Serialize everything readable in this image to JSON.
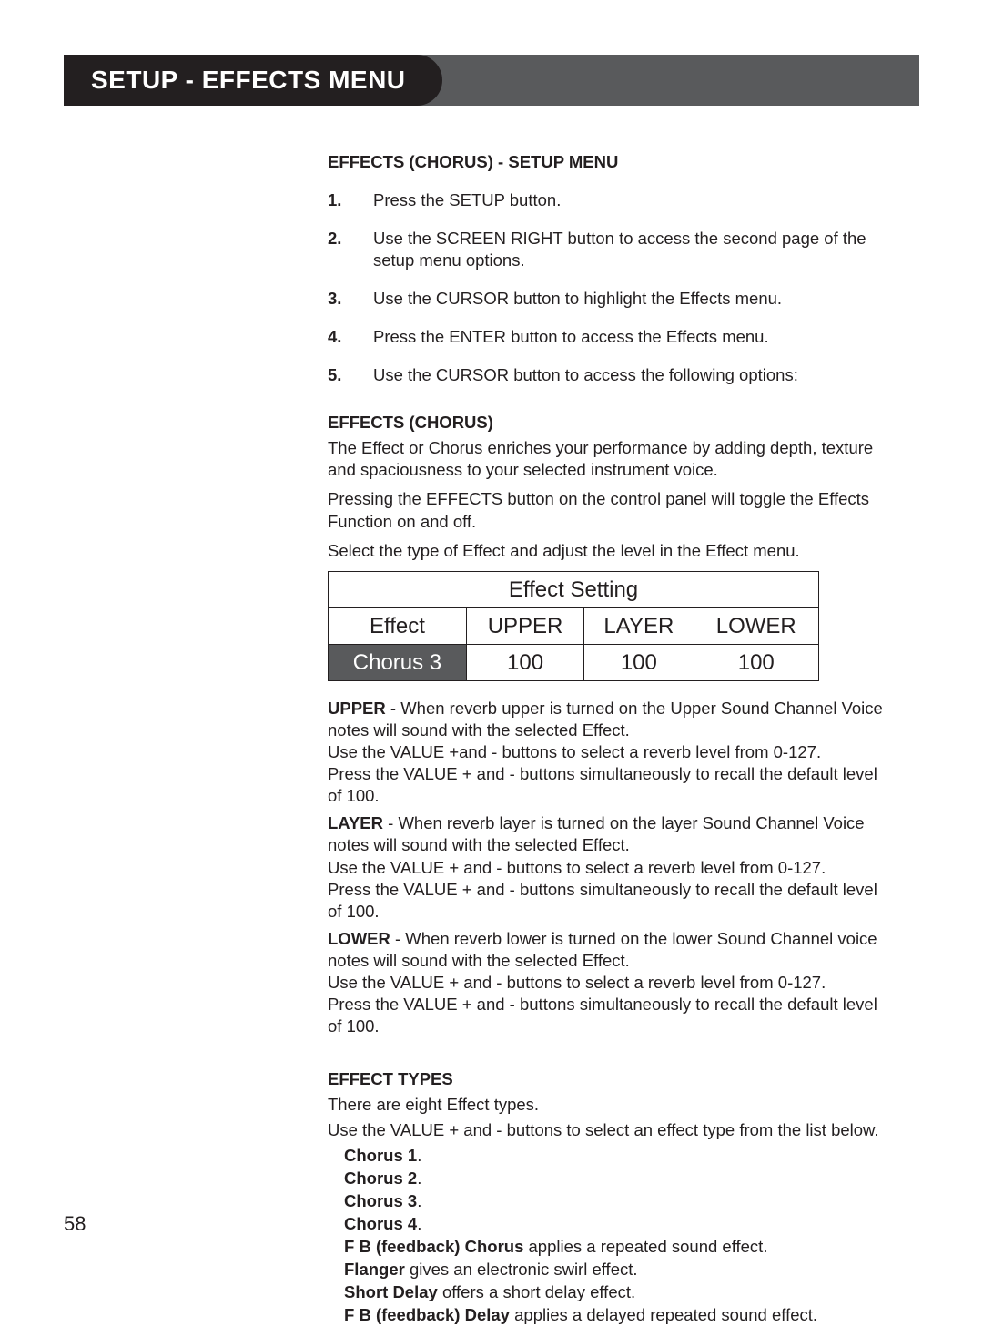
{
  "header": {
    "title": "SETUP - EFFECTS MENU"
  },
  "page_number": "58",
  "section1": {
    "heading": "EFFECTS (CHORUS) - SETUP MENU",
    "steps": [
      {
        "n": "1.",
        "text": "Press the SETUP button."
      },
      {
        "n": "2.",
        "text": "Use the SCREEN RIGHT button to access the second page of the setup menu options."
      },
      {
        "n": "3.",
        "text": "Use the CURSOR button to highlight the Effects menu."
      },
      {
        "n": "4.",
        "text": "Press the ENTER button to access the Effects menu."
      },
      {
        "n": "5.",
        "text": "Use the CURSOR button to access the following options:"
      }
    ]
  },
  "section2": {
    "heading": "EFFECTS (CHORUS)",
    "intro1": "The Effect or Chorus enriches your performance by adding depth, texture and spaciousness to your selected instrument voice.",
    "intro2": "Pressing the EFFECTS button on the control panel will toggle the Effects Function on and off.",
    "intro3": "Select the type of Effect and adjust the level in the Effect menu."
  },
  "table": {
    "title": "Effect  Setting",
    "headers": [
      "Effect",
      "UPPER",
      "LAYER",
      "LOWER"
    ],
    "row": [
      "Chorus 3",
      "100",
      "100",
      "100"
    ],
    "colors": {
      "selected_bg": "#595a5c",
      "selected_fg": "#ffffff",
      "border": "#231f20"
    }
  },
  "descriptions": [
    {
      "label": "UPPER",
      "rest": " - When reverb upper is turned on the Upper Sound Channel Voice notes will sound with the selected Effect.",
      "l2": "Use the VALUE +and -  buttons to select a reverb level from 0-127.",
      "l3": "Press the VALUE + and - buttons simultaneously to recall the default level of 100."
    },
    {
      "label": "LAYER",
      "rest": " - When reverb layer is turned on the layer Sound Channel Voice notes will sound with the selected Effect.",
      "l2": "Use the VALUE + and -  buttons to select a reverb level from 0-127.",
      "l3": "Press the VALUE + and -  buttons simultaneously to recall the default level of 100."
    },
    {
      "label": "LOWER",
      "rest": " - When reverb lower is turned on the lower Sound Channel voice notes will sound with the selected Effect.",
      "l2": "Use the VALUE + and -  buttons to select a reverb level from 0-127.",
      "l3": "Press the VALUE + and - buttons simultaneously to recall the default level of 100."
    }
  ],
  "effect_types": {
    "heading": "EFFECT TYPES",
    "intro1": "There are eight Effect types.",
    "intro2": "Use the VALUE + and - buttons to select an effect type from the list below.",
    "list": [
      {
        "name": "Chorus 1",
        "desc": "."
      },
      {
        "name": "Chorus 2",
        "desc": "."
      },
      {
        "name": "Chorus 3",
        "desc": "."
      },
      {
        "name": "Chorus 4",
        "desc": "."
      },
      {
        "name": "F B (feedback) Chorus",
        "desc": " applies a repeated sound effect."
      },
      {
        "name": "Flanger",
        "desc": " gives an electronic swirl effect."
      },
      {
        "name": "Short Delay",
        "desc": " offers a short delay effect."
      },
      {
        "name": "F B (feedback) Delay",
        "desc": " applies a delayed repeated sound effect."
      }
    ]
  }
}
